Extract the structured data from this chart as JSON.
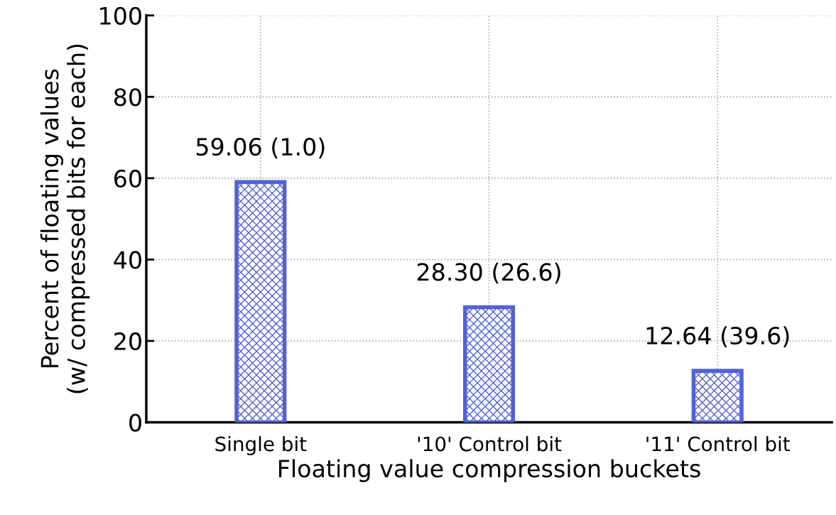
{
  "chart_data": {
    "type": "bar",
    "xlabel": "Floating value compression buckets",
    "ylabel": "Percent of floating values\n(w/ compressed bits for each)",
    "categories": [
      "Single bit",
      "'10' Control bit",
      "'11' Control bit"
    ],
    "values": [
      59.06,
      28.3,
      12.64
    ],
    "value_labels": [
      "59.06 (1.0)",
      "28.30 (26.6)",
      "12.64 (39.6)"
    ],
    "color": "#5262d6",
    "ylim": [
      0,
      100
    ],
    "yticks": [
      0,
      20,
      40,
      60,
      80,
      100
    ],
    "grid": true
  }
}
